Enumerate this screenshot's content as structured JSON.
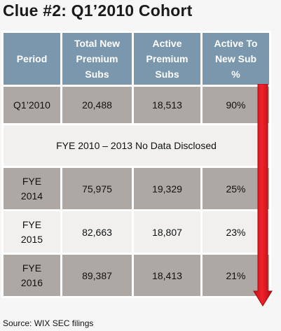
{
  "title": "Clue #2: Q1’2010 Cohort",
  "headers": {
    "period": "Period",
    "total_new_1": "Total New",
    "total_new_2": "Premium",
    "total_new_3": "Subs",
    "active_1": "Active",
    "active_2": "Premium",
    "active_3": "Subs",
    "ratio_1": "Active To",
    "ratio_2": "New Sub",
    "ratio_3": "%"
  },
  "rows": [
    {
      "period_1": "Q1’2010",
      "period_2": "",
      "total": "20,488",
      "active": "18,513",
      "ratio": "90%"
    },
    {
      "period_1": "FYE",
      "period_2": "2014",
      "total": "75,975",
      "active": "19,329",
      "ratio": "25%"
    },
    {
      "period_1": "FYE",
      "period_2": "2015",
      "total": "82,663",
      "active": "18,807",
      "ratio": "23%"
    },
    {
      "period_1": "FYE",
      "period_2": "2016",
      "total": "89,387",
      "active": "18,413",
      "ratio": "21%"
    }
  ],
  "note": "FYE 2010 – 2013 No Data Disclosed",
  "source": "Source: WIX SEC filings",
  "colors": {
    "header": "#7b97ad",
    "dark_row": "#aea8a5",
    "light_row": "#f1f0ef",
    "arrow": "#e8171f"
  },
  "icons": {
    "arrow": "down-arrow-icon"
  }
}
